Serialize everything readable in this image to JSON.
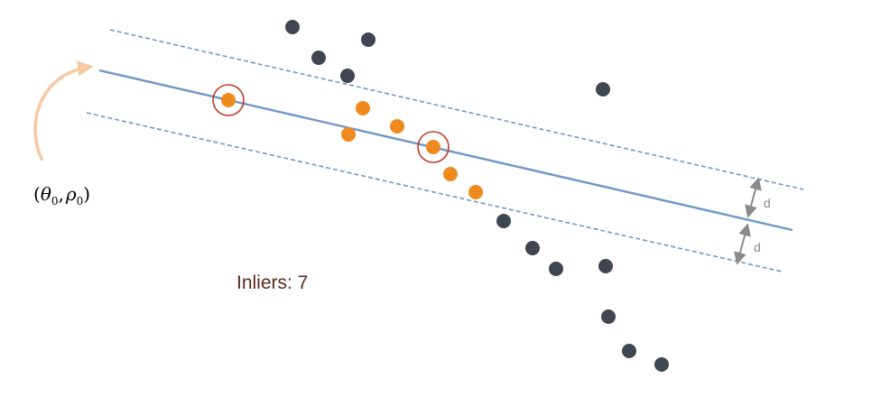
{
  "param_label": {
    "open": "(",
    "theta": "θ",
    "theta_sub": "0",
    "sep": ",",
    "rho": "ρ",
    "rho_sub": "0",
    "close": ")"
  },
  "inliers_text": "Inliers: 7",
  "distance_label_top": "d",
  "distance_label_bottom": "d",
  "colors": {
    "fit_line": "#6f97c6",
    "threshold_line": "#6f97c6",
    "inlier_point": "#ee8a1e",
    "outlier_point": "#3f4650",
    "sample_ring": "#c0392b",
    "pointer_arrow": "#f6c9a3",
    "distance_arrow": "#8a8a8a"
  }
}
